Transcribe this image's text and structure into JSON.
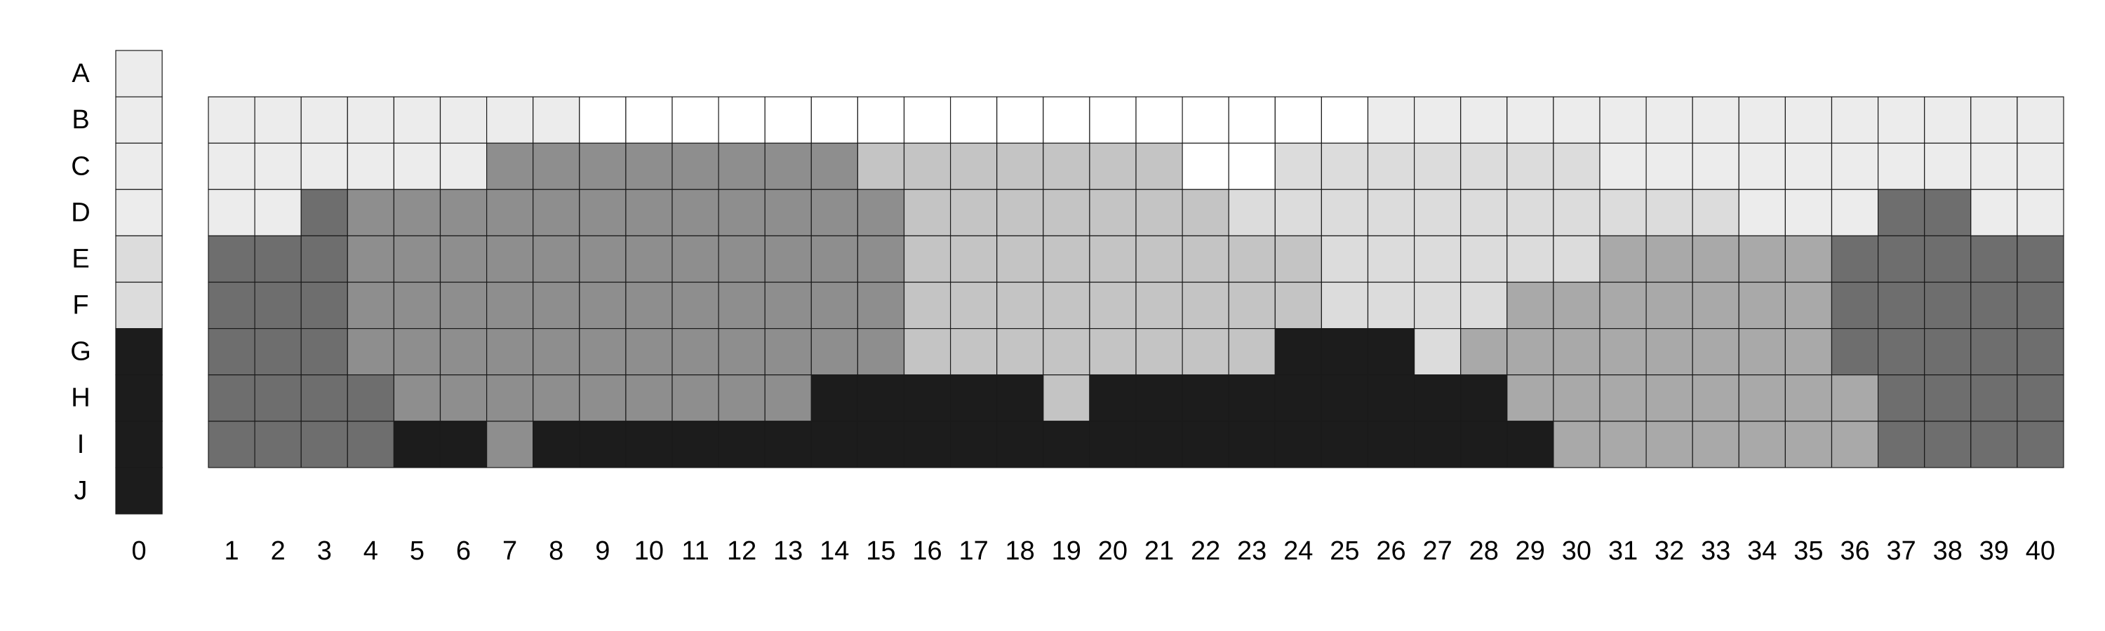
{
  "chart_data": {
    "type": "heatmap",
    "title": "",
    "rows": [
      "A",
      "B",
      "C",
      "D",
      "E",
      "F",
      "G",
      "H",
      "I",
      "J"
    ],
    "columns": [
      "0",
      "1",
      "2",
      "3",
      "4",
      "5",
      "6",
      "7",
      "8",
      "9",
      "10",
      "11",
      "12",
      "13",
      "14",
      "15",
      "16",
      "17",
      "18",
      "19",
      "20",
      "21",
      "22",
      "23",
      "24",
      "25",
      "26",
      "27",
      "28",
      "29",
      "30",
      "31",
      "32",
      "33",
      "34",
      "35",
      "36",
      "37",
      "38",
      "39",
      "40"
    ],
    "palette": {
      "0": "#1c1c1c",
      "1": "#6e6e6e",
      "2": "#8e8e8e",
      "3": "#a9a9a9",
      "4": "#c4c4c4",
      "5": "#dcdcdc",
      "6": "#ececec",
      "7": "#ffffff"
    },
    "reference_column": {
      "column": "0",
      "values": [
        6,
        6,
        6,
        6,
        5,
        5,
        0,
        0,
        0,
        0
      ]
    },
    "grid_rows": [
      "B",
      "C",
      "D",
      "E",
      "F",
      "G",
      "H",
      "I"
    ],
    "grid_values": [
      [
        6,
        6,
        6,
        6,
        6,
        6,
        6,
        6,
        7,
        7,
        7,
        7,
        7,
        7,
        7,
        7,
        7,
        7,
        7,
        7,
        7,
        7,
        7,
        7,
        7,
        6,
        6,
        6,
        6,
        6,
        6,
        6,
        6,
        6,
        6,
        6,
        6,
        6,
        6,
        6
      ],
      [
        6,
        6,
        6,
        6,
        6,
        6,
        2,
        2,
        2,
        2,
        2,
        2,
        2,
        2,
        4,
        4,
        4,
        4,
        4,
        4,
        4,
        7,
        7,
        5,
        5,
        5,
        5,
        5,
        5,
        5,
        6,
        6,
        6,
        6,
        6,
        6,
        6,
        6,
        6,
        6
      ],
      [
        6,
        6,
        1,
        2,
        2,
        2,
        2,
        2,
        2,
        2,
        2,
        2,
        2,
        2,
        2,
        4,
        4,
        4,
        4,
        4,
        4,
        4,
        5,
        5,
        5,
        5,
        5,
        5,
        5,
        5,
        5,
        5,
        5,
        6,
        6,
        6,
        1,
        1,
        6,
        6
      ],
      [
        1,
        1,
        1,
        2,
        2,
        2,
        2,
        2,
        2,
        2,
        2,
        2,
        2,
        2,
        2,
        4,
        4,
        4,
        4,
        4,
        4,
        4,
        4,
        4,
        5,
        5,
        5,
        5,
        5,
        5,
        3,
        3,
        3,
        3,
        3,
        1,
        1,
        1,
        1,
        1
      ],
      [
        1,
        1,
        1,
        2,
        2,
        2,
        2,
        2,
        2,
        2,
        2,
        2,
        2,
        2,
        2,
        4,
        4,
        4,
        4,
        4,
        4,
        4,
        4,
        4,
        5,
        5,
        5,
        5,
        3,
        3,
        3,
        3,
        3,
        3,
        3,
        1,
        1,
        1,
        1,
        1
      ],
      [
        1,
        1,
        1,
        2,
        2,
        2,
        2,
        2,
        2,
        2,
        2,
        2,
        2,
        2,
        2,
        4,
        4,
        4,
        4,
        4,
        4,
        4,
        4,
        0,
        0,
        0,
        5,
        3,
        3,
        3,
        3,
        3,
        3,
        3,
        3,
        1,
        1,
        1,
        1,
        1
      ],
      [
        1,
        1,
        1,
        1,
        2,
        2,
        2,
        2,
        2,
        2,
        2,
        2,
        2,
        0,
        0,
        0,
        0,
        0,
        4,
        0,
        0,
        0,
        0,
        0,
        0,
        0,
        0,
        0,
        3,
        3,
        3,
        3,
        3,
        3,
        3,
        3,
        1,
        1,
        1,
        1
      ],
      [
        1,
        1,
        1,
        1,
        0,
        0,
        2,
        0,
        0,
        0,
        0,
        0,
        0,
        0,
        0,
        0,
        0,
        0,
        0,
        0,
        0,
        0,
        0,
        0,
        0,
        0,
        0,
        0,
        0,
        3,
        3,
        3,
        3,
        3,
        3,
        3,
        1,
        1,
        1,
        1
      ]
    ]
  }
}
